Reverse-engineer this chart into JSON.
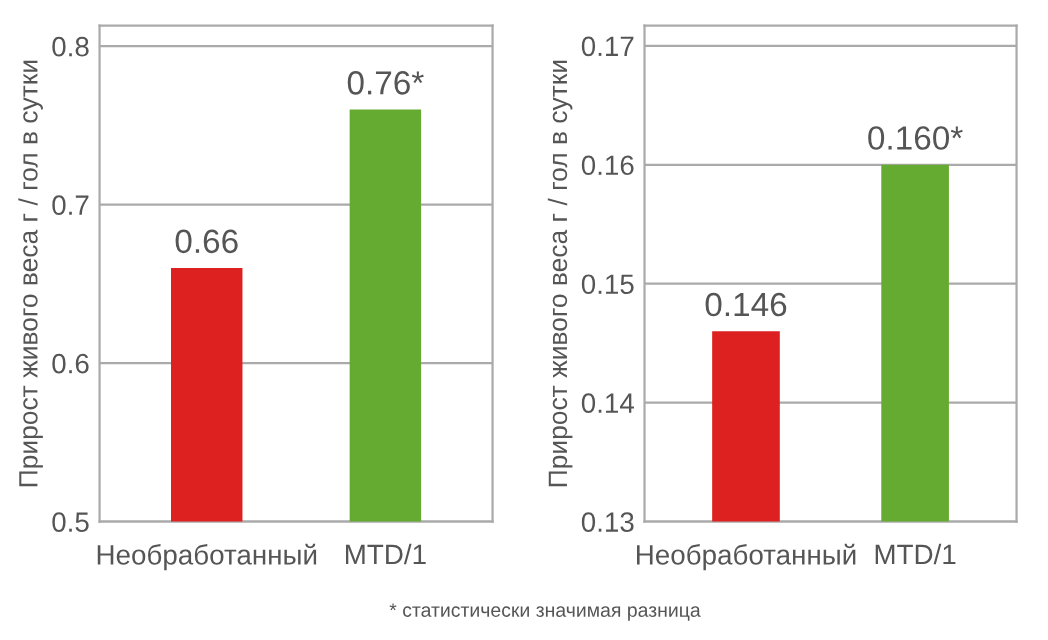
{
  "chart_data": [
    {
      "type": "bar",
      "ylabel": "Прирост живого веса г / гол в сутки",
      "categories": [
        "Необработанный",
        "MTD/1"
      ],
      "values": [
        0.66,
        0.76
      ],
      "colors": [
        "#dc2120",
        "#66ab31"
      ],
      "value_labels": [
        "0.66",
        "0.76*"
      ],
      "ylim": [
        0.5,
        0.813
      ],
      "yticks": [
        0.5,
        0.6,
        0.7,
        0.8
      ],
      "grid": "y",
      "annotations": [
        "* статистически значимая разница"
      ]
    },
    {
      "type": "bar",
      "ylabel": "Прирост живого веса г / гол в сутки",
      "categories": [
        "Необработанный",
        "MTD/1"
      ],
      "values": [
        0.146,
        0.16
      ],
      "colors": [
        "#dc2120",
        "#66ab31"
      ],
      "value_labels": [
        "0.146",
        "0.160*"
      ],
      "ylim": [
        0.13,
        0.1717
      ],
      "yticks": [
        0.13,
        0.14,
        0.15,
        0.16,
        0.17
      ],
      "grid": "y"
    }
  ]
}
